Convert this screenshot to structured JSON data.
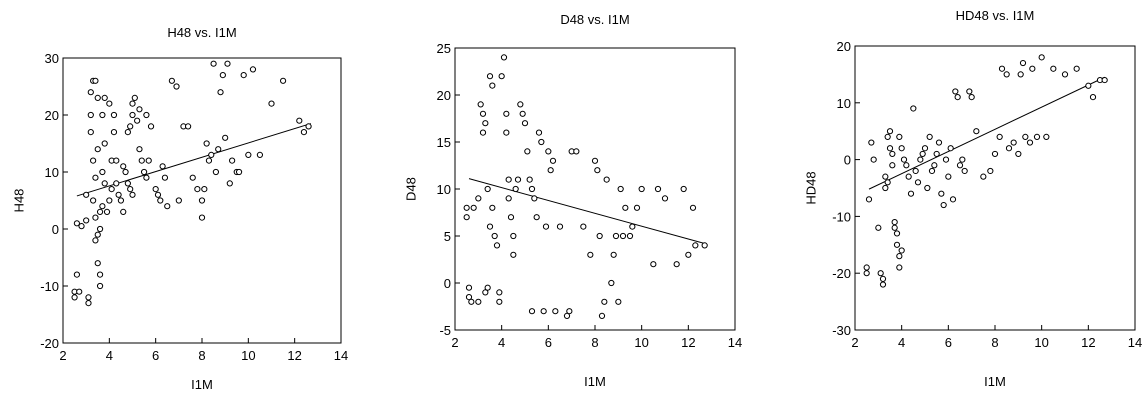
{
  "chart_data": [
    {
      "type": "scatter",
      "title": "H48 vs. I1M",
      "xlabel": "I1M",
      "ylabel": "H48",
      "xlim": [
        2,
        14
      ],
      "ylim": [
        -20,
        30
      ],
      "xticks": [
        "2",
        "4",
        "6",
        "8",
        "10",
        "12",
        "14"
      ],
      "yticks": [
        "-20",
        "-10",
        "0",
        "10",
        "20",
        "30"
      ],
      "fit_line": {
        "x": [
          2.6,
          12.7
        ],
        "y": [
          5.8,
          18.5
        ]
      },
      "points": [
        [
          2.5,
          -11
        ],
        [
          2.5,
          -12
        ],
        [
          2.6,
          -8
        ],
        [
          2.7,
          -11
        ],
        [
          2.6,
          1
        ],
        [
          2.8,
          0.5
        ],
        [
          3.0,
          1.5
        ],
        [
          3.0,
          6
        ],
        [
          3.1,
          -12
        ],
        [
          3.1,
          -13
        ],
        [
          3.2,
          20
        ],
        [
          3.2,
          24
        ],
        [
          3.3,
          26
        ],
        [
          3.4,
          26
        ],
        [
          3.5,
          23
        ],
        [
          3.2,
          17
        ],
        [
          3.3,
          12
        ],
        [
          3.5,
          14
        ],
        [
          3.4,
          9
        ],
        [
          3.3,
          5
        ],
        [
          3.4,
          2
        ],
        [
          3.5,
          -1
        ],
        [
          3.4,
          -2
        ],
        [
          3.6,
          0
        ],
        [
          3.6,
          3
        ],
        [
          3.5,
          -6
        ],
        [
          3.6,
          -8
        ],
        [
          3.6,
          -10
        ],
        [
          3.7,
          20
        ],
        [
          3.8,
          23
        ],
        [
          3.8,
          15
        ],
        [
          3.7,
          10
        ],
        [
          3.8,
          8
        ],
        [
          3.7,
          4
        ],
        [
          3.9,
          3
        ],
        [
          4.0,
          5
        ],
        [
          4.1,
          7
        ],
        [
          4.1,
          12
        ],
        [
          4.0,
          22
        ],
        [
          4.2,
          20
        ],
        [
          4.2,
          17
        ],
        [
          4.3,
          12
        ],
        [
          4.3,
          8
        ],
        [
          4.4,
          6
        ],
        [
          4.5,
          5
        ],
        [
          4.6,
          3
        ],
        [
          4.6,
          11
        ],
        [
          4.7,
          10
        ],
        [
          4.8,
          8
        ],
        [
          4.9,
          7
        ],
        [
          5.0,
          6
        ],
        [
          4.8,
          17
        ],
        [
          4.9,
          18
        ],
        [
          5.0,
          20
        ],
        [
          5.0,
          22
        ],
        [
          5.1,
          23
        ],
        [
          5.2,
          19
        ],
        [
          5.3,
          21
        ],
        [
          5.3,
          14
        ],
        [
          5.4,
          12
        ],
        [
          5.5,
          10
        ],
        [
          5.6,
          9
        ],
        [
          5.7,
          12
        ],
        [
          5.6,
          20
        ],
        [
          5.8,
          18
        ],
        [
          6.0,
          7
        ],
        [
          6.1,
          6
        ],
        [
          6.2,
          5
        ],
        [
          6.3,
          11
        ],
        [
          6.4,
          9
        ],
        [
          6.5,
          4
        ],
        [
          6.7,
          26
        ],
        [
          6.9,
          25
        ],
        [
          7.0,
          5
        ],
        [
          7.2,
          18
        ],
        [
          7.4,
          18
        ],
        [
          7.6,
          9
        ],
        [
          7.8,
          7
        ],
        [
          8.0,
          5
        ],
        [
          8.0,
          2
        ],
        [
          8.1,
          7
        ],
        [
          8.2,
          15
        ],
        [
          8.3,
          12
        ],
        [
          8.4,
          13
        ],
        [
          8.5,
          29
        ],
        [
          8.6,
          10
        ],
        [
          8.7,
          14
        ],
        [
          8.8,
          24
        ],
        [
          8.9,
          27
        ],
        [
          9.0,
          16
        ],
        [
          9.1,
          29
        ],
        [
          9.2,
          8
        ],
        [
          9.3,
          12
        ],
        [
          9.5,
          10
        ],
        [
          9.6,
          10
        ],
        [
          9.8,
          27
        ],
        [
          10.0,
          13
        ],
        [
          10.2,
          28
        ],
        [
          10.5,
          13
        ],
        [
          11.0,
          22
        ],
        [
          11.5,
          26
        ],
        [
          12.2,
          19
        ],
        [
          12.4,
          17
        ],
        [
          12.6,
          18
        ]
      ]
    },
    {
      "type": "scatter",
      "title": "D48 vs. I1M",
      "xlabel": "I1M",
      "ylabel": "D48",
      "xlim": [
        2,
        14
      ],
      "ylim": [
        -5,
        25
      ],
      "xticks": [
        "2",
        "4",
        "6",
        "8",
        "10",
        "12",
        "14"
      ],
      "yticks": [
        "-5",
        "0",
        "5",
        "10",
        "15",
        "20",
        "25"
      ],
      "fit_line": {
        "x": [
          2.6,
          12.7
        ],
        "y": [
          11.1,
          4.2
        ]
      },
      "points": [
        [
          2.5,
          7
        ],
        [
          2.5,
          8
        ],
        [
          2.6,
          -1.5
        ],
        [
          2.6,
          -0.5
        ],
        [
          2.7,
          -2
        ],
        [
          2.8,
          8
        ],
        [
          3.0,
          -2
        ],
        [
          3.0,
          9
        ],
        [
          3.1,
          19
        ],
        [
          3.2,
          18
        ],
        [
          3.2,
          16
        ],
        [
          3.3,
          17
        ],
        [
          3.3,
          -1
        ],
        [
          3.4,
          -0.5
        ],
        [
          3.4,
          10
        ],
        [
          3.5,
          22
        ],
        [
          3.6,
          21
        ],
        [
          3.5,
          6
        ],
        [
          3.6,
          8
        ],
        [
          3.7,
          5
        ],
        [
          3.8,
          4
        ],
        [
          3.9,
          -1
        ],
        [
          3.9,
          -2
        ],
        [
          4.0,
          22
        ],
        [
          4.1,
          24
        ],
        [
          4.2,
          18
        ],
        [
          4.2,
          16
        ],
        [
          4.3,
          11
        ],
        [
          4.3,
          9
        ],
        [
          4.4,
          7
        ],
        [
          4.5,
          5
        ],
        [
          4.5,
          3
        ],
        [
          4.6,
          10
        ],
        [
          4.7,
          11
        ],
        [
          4.8,
          19
        ],
        [
          4.9,
          18
        ],
        [
          5.0,
          17
        ],
        [
          5.1,
          14
        ],
        [
          5.2,
          11
        ],
        [
          5.3,
          10
        ],
        [
          5.3,
          -3
        ],
        [
          5.4,
          9
        ],
        [
          5.5,
          7
        ],
        [
          5.6,
          16
        ],
        [
          5.7,
          15
        ],
        [
          5.8,
          -3
        ],
        [
          5.9,
          6
        ],
        [
          6.0,
          14
        ],
        [
          6.1,
          12
        ],
        [
          6.2,
          13
        ],
        [
          6.3,
          -3
        ],
        [
          6.5,
          6
        ],
        [
          6.8,
          -3.5
        ],
        [
          6.9,
          -3
        ],
        [
          7.0,
          14
        ],
        [
          7.2,
          14
        ],
        [
          7.5,
          6
        ],
        [
          7.8,
          3
        ],
        [
          8.0,
          13
        ],
        [
          8.1,
          12
        ],
        [
          8.2,
          5
        ],
        [
          8.3,
          -3.5
        ],
        [
          8.4,
          -2
        ],
        [
          8.5,
          11
        ],
        [
          8.7,
          0
        ],
        [
          8.8,
          3
        ],
        [
          8.9,
          5
        ],
        [
          9.0,
          -2
        ],
        [
          9.1,
          10
        ],
        [
          9.2,
          5
        ],
        [
          9.3,
          8
        ],
        [
          9.5,
          5
        ],
        [
          9.6,
          6
        ],
        [
          9.8,
          8
        ],
        [
          10.0,
          10
        ],
        [
          10.5,
          2
        ],
        [
          10.7,
          10
        ],
        [
          11.0,
          9
        ],
        [
          11.5,
          2
        ],
        [
          11.8,
          10
        ],
        [
          12.0,
          3
        ],
        [
          12.2,
          8
        ],
        [
          12.3,
          4
        ],
        [
          12.7,
          4
        ]
      ]
    },
    {
      "type": "scatter",
      "title": "HD48 vs. I1M",
      "xlabel": "I1M",
      "ylabel": "HD48",
      "xlim": [
        2,
        14
      ],
      "ylim": [
        -30,
        20
      ],
      "xticks": [
        "2",
        "4",
        "6",
        "8",
        "10",
        "12",
        "14"
      ],
      "yticks": [
        "-30",
        "-20",
        "-10",
        "0",
        "10",
        "20"
      ],
      "fit_line": {
        "x": [
          2.6,
          12.7
        ],
        "y": [
          -5.2,
          14.5
        ]
      },
      "points": [
        [
          2.5,
          -19
        ],
        [
          2.5,
          -20
        ],
        [
          2.6,
          -7
        ],
        [
          2.7,
          3
        ],
        [
          2.8,
          0
        ],
        [
          3.0,
          -12
        ],
        [
          3.1,
          -20
        ],
        [
          3.2,
          -22
        ],
        [
          3.2,
          -21
        ],
        [
          3.3,
          -5
        ],
        [
          3.3,
          -3
        ],
        [
          3.4,
          -4
        ],
        [
          3.4,
          4
        ],
        [
          3.5,
          5
        ],
        [
          3.5,
          2
        ],
        [
          3.6,
          1
        ],
        [
          3.6,
          -1
        ],
        [
          3.7,
          -11
        ],
        [
          3.7,
          -12
        ],
        [
          3.8,
          -13
        ],
        [
          3.8,
          -15
        ],
        [
          3.9,
          -17
        ],
        [
          3.9,
          -19
        ],
        [
          4.0,
          -16
        ],
        [
          3.9,
          4
        ],
        [
          4.0,
          2
        ],
        [
          4.1,
          0
        ],
        [
          4.2,
          -1
        ],
        [
          4.3,
          -3
        ],
        [
          4.4,
          -6
        ],
        [
          4.5,
          9
        ],
        [
          4.6,
          -2
        ],
        [
          4.7,
          -4
        ],
        [
          4.8,
          0
        ],
        [
          4.9,
          1
        ],
        [
          5.0,
          2
        ],
        [
          5.1,
          -5
        ],
        [
          5.2,
          4
        ],
        [
          5.3,
          -2
        ],
        [
          5.4,
          -1
        ],
        [
          5.5,
          1
        ],
        [
          5.6,
          3
        ],
        [
          5.7,
          -6
        ],
        [
          5.8,
          -8
        ],
        [
          5.9,
          0
        ],
        [
          6.0,
          -3
        ],
        [
          6.1,
          2
        ],
        [
          6.2,
          -7
        ],
        [
          6.3,
          12
        ],
        [
          6.4,
          11
        ],
        [
          6.5,
          -1
        ],
        [
          6.6,
          0
        ],
        [
          6.7,
          -2
        ],
        [
          6.9,
          12
        ],
        [
          7.0,
          11
        ],
        [
          7.2,
          5
        ],
        [
          7.5,
          -3
        ],
        [
          7.8,
          -2
        ],
        [
          8.0,
          1
        ],
        [
          8.2,
          4
        ],
        [
          8.3,
          16
        ],
        [
          8.5,
          15
        ],
        [
          8.6,
          2
        ],
        [
          8.8,
          3
        ],
        [
          9.0,
          1
        ],
        [
          9.1,
          15
        ],
        [
          9.2,
          17
        ],
        [
          9.3,
          4
        ],
        [
          9.5,
          3
        ],
        [
          9.6,
          16
        ],
        [
          9.8,
          4
        ],
        [
          10.0,
          18
        ],
        [
          10.2,
          4
        ],
        [
          10.5,
          16
        ],
        [
          11.0,
          15
        ],
        [
          11.5,
          16
        ],
        [
          12.0,
          13
        ],
        [
          12.2,
          11
        ],
        [
          12.5,
          14
        ],
        [
          12.7,
          14
        ]
      ]
    }
  ]
}
